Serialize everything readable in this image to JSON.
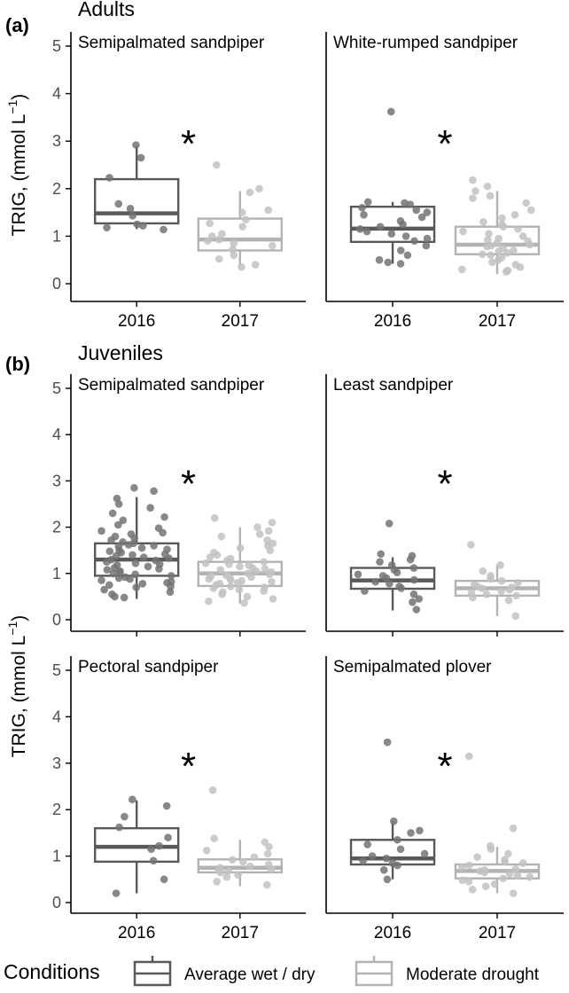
{
  "figure": {
    "y_label": "TRIG, (mmol L",
    "y_label_sup": "−1",
    "y_label_end": ")",
    "y_ticks": [
      "0",
      "1",
      "2",
      "3",
      "4",
      "5"
    ],
    "x_ticks": [
      "2016",
      "2017"
    ]
  },
  "sections": [
    {
      "tag": "(a)",
      "title": "Adults"
    },
    {
      "tag": "(b)",
      "title": "Juveniles"
    }
  ],
  "legend": {
    "title": "Conditions",
    "items": [
      {
        "label": "Average wet / dry",
        "color": "#595959"
      },
      {
        "label": "Moderate drought",
        "color": "#b3b3b3"
      }
    ]
  },
  "colors": {
    "wet": "#595959",
    "drought": "#b3b3b3",
    "axis": "#000000"
  },
  "chart_data": [
    {
      "type": "box",
      "title": "Semipalmated sandpiper",
      "annotation": "*",
      "ylim": [
        0,
        5
      ],
      "categories": [
        "2016",
        "2017"
      ],
      "series": [
        {
          "name": "Average wet / dry",
          "q1": 1.27,
          "median": 1.48,
          "q3": 2.2,
          "whisker_low": 1.15,
          "whisker_high": 2.9,
          "points": [
            2.92,
            2.65,
            2.23,
            1.68,
            1.43,
            1.25,
            1.18,
            1.14,
            1.22,
            1.58
          ]
        },
        {
          "name": "Moderate drought",
          "q1": 0.7,
          "median": 0.93,
          "q3": 1.37,
          "whisker_low": 0.35,
          "whisker_high": 1.95,
          "points": [
            2.5,
            2.0,
            1.92,
            1.55,
            1.5,
            1.35,
            1.27,
            1.2,
            1.05,
            1.0,
            0.93,
            0.9,
            0.85,
            0.8,
            0.72,
            0.6,
            0.52,
            0.4,
            0.35
          ]
        }
      ]
    },
    {
      "type": "box",
      "title": "White-rumped sandpiper",
      "annotation": "*",
      "ylim": [
        0,
        5
      ],
      "categories": [
        "2016",
        "2017"
      ],
      "series": [
        {
          "name": "Average wet / dry",
          "q1": 0.88,
          "median": 1.16,
          "q3": 1.62,
          "whisker_low": 0.42,
          "whisker_high": 1.72,
          "points": [
            3.62,
            1.72,
            1.7,
            1.67,
            1.6,
            1.55,
            1.5,
            1.45,
            1.4,
            1.32,
            1.25,
            1.2,
            1.15,
            1.1,
            1.05,
            1.0,
            0.95,
            0.9,
            0.8,
            0.7,
            0.6,
            0.5,
            0.45,
            0.42
          ]
        },
        {
          "name": "Moderate drought",
          "q1": 0.62,
          "median": 0.82,
          "q3": 1.2,
          "whisker_low": 0.2,
          "whisker_high": 1.95,
          "points": [
            2.18,
            2.05,
            1.95,
            1.85,
            1.8,
            1.7,
            1.55,
            1.45,
            1.38,
            1.3,
            1.25,
            1.2,
            1.15,
            1.1,
            1.05,
            1.0,
            0.95,
            0.92,
            0.9,
            0.85,
            0.82,
            0.8,
            0.78,
            0.75,
            0.7,
            0.68,
            0.65,
            0.62,
            0.6,
            0.55,
            0.5,
            0.45,
            0.4,
            0.35,
            0.3,
            0.28,
            0.25
          ]
        }
      ]
    },
    {
      "type": "box",
      "title": "Semipalmated sandpiper",
      "annotation": "*",
      "ylim": [
        0,
        5
      ],
      "categories": [
        "2016",
        "2017"
      ],
      "series": [
        {
          "name": "Average wet / dry",
          "q1": 0.95,
          "median": 1.3,
          "q3": 1.65,
          "whisker_low": 0.45,
          "whisker_high": 2.65,
          "points": [
            2.85,
            2.78,
            2.62,
            2.5,
            2.42,
            2.3,
            2.22,
            2.15,
            2.05,
            1.98,
            1.92,
            1.88,
            1.85,
            1.8,
            1.76,
            1.72,
            1.68,
            1.65,
            1.62,
            1.6,
            1.58,
            1.55,
            1.52,
            1.5,
            1.48,
            1.45,
            1.42,
            1.4,
            1.38,
            1.35,
            1.33,
            1.3,
            1.28,
            1.25,
            1.22,
            1.2,
            1.18,
            1.15,
            1.12,
            1.1,
            1.08,
            1.05,
            1.02,
            1.0,
            0.98,
            0.95,
            0.92,
            0.9,
            0.88,
            0.85,
            0.82,
            0.8,
            0.78,
            0.75,
            0.72,
            0.7,
            0.65,
            0.6,
            0.55,
            0.5,
            0.48
          ]
        },
        {
          "name": "Moderate drought",
          "q1": 0.73,
          "median": 1.0,
          "q3": 1.25,
          "whisker_low": 0.35,
          "whisker_high": 2.0,
          "points": [
            2.2,
            2.1,
            2.0,
            1.92,
            1.85,
            1.8,
            1.72,
            1.65,
            1.6,
            1.55,
            1.5,
            1.45,
            1.4,
            1.35,
            1.32,
            1.28,
            1.25,
            1.22,
            1.2,
            1.18,
            1.15,
            1.12,
            1.1,
            1.08,
            1.05,
            1.03,
            1.0,
            0.98,
            0.96,
            0.94,
            0.92,
            0.9,
            0.88,
            0.86,
            0.84,
            0.82,
            0.8,
            0.78,
            0.75,
            0.72,
            0.7,
            0.68,
            0.65,
            0.62,
            0.6,
            0.55,
            0.5,
            0.45,
            0.4,
            0.36
          ]
        }
      ]
    },
    {
      "type": "box",
      "title": "Least sandpiper",
      "annotation": "*",
      "ylim": [
        0,
        5
      ],
      "categories": [
        "2016",
        "2017"
      ],
      "series": [
        {
          "name": "Average wet / dry",
          "q1": 0.67,
          "median": 0.85,
          "q3": 1.12,
          "whisker_low": 0.2,
          "whisker_high": 1.35,
          "points": [
            2.08,
            1.42,
            1.38,
            1.3,
            1.25,
            1.18,
            1.12,
            1.08,
            1.02,
            0.98,
            0.95,
            0.9,
            0.86,
            0.82,
            0.78,
            0.72,
            0.68,
            0.62,
            0.55,
            0.45,
            0.38,
            0.22
          ]
        },
        {
          "name": "Moderate drought",
          "q1": 0.52,
          "median": 0.68,
          "q3": 0.84,
          "whisker_low": 0.08,
          "whisker_high": 1.18,
          "points": [
            1.62,
            1.18,
            1.05,
            0.95,
            0.88,
            0.84,
            0.8,
            0.76,
            0.72,
            0.7,
            0.68,
            0.65,
            0.62,
            0.58,
            0.55,
            0.52,
            0.48,
            0.42,
            0.08
          ]
        }
      ]
    },
    {
      "type": "box",
      "title": "Pectoral sandpiper",
      "annotation": "*",
      "ylim": [
        0,
        5
      ],
      "categories": [
        "2016",
        "2017"
      ],
      "series": [
        {
          "name": "Average wet / dry",
          "q1": 0.88,
          "median": 1.2,
          "q3": 1.6,
          "whisker_low": 0.2,
          "whisker_high": 2.2,
          "points": [
            2.22,
            2.08,
            1.85,
            1.62,
            1.4,
            1.22,
            1.15,
            0.9,
            0.5,
            0.2
          ]
        },
        {
          "name": "Moderate drought",
          "q1": 0.65,
          "median": 0.75,
          "q3": 0.93,
          "whisker_low": 0.35,
          "whisker_high": 1.35,
          "points": [
            2.42,
            1.38,
            1.3,
            1.2,
            1.12,
            1.05,
            0.98,
            0.92,
            0.88,
            0.82,
            0.78,
            0.75,
            0.72,
            0.7,
            0.68,
            0.65,
            0.6,
            0.55,
            0.45,
            0.38
          ]
        }
      ]
    },
    {
      "type": "box",
      "title": "Semipalmated plover",
      "annotation": "*",
      "ylim": [
        0,
        5
      ],
      "categories": [
        "2016",
        "2017"
      ],
      "series": [
        {
          "name": "Average wet / dry",
          "q1": 0.82,
          "median": 0.95,
          "q3": 1.35,
          "whisker_low": 0.5,
          "whisker_high": 1.75,
          "points": [
            3.45,
            1.75,
            1.55,
            1.5,
            1.35,
            1.25,
            1.15,
            1.05,
            1.0,
            0.95,
            0.9,
            0.85,
            0.8,
            0.7,
            0.5
          ]
        },
        {
          "name": "Moderate drought",
          "q1": 0.52,
          "median": 0.68,
          "q3": 0.82,
          "whisker_low": 0.2,
          "whisker_high": 1.2,
          "points": [
            3.15,
            1.6,
            1.22,
            1.15,
            1.05,
            0.98,
            0.92,
            0.88,
            0.85,
            0.8,
            0.76,
            0.72,
            0.7,
            0.68,
            0.65,
            0.62,
            0.58,
            0.55,
            0.52,
            0.48,
            0.45,
            0.4,
            0.35,
            0.28,
            0.2
          ]
        }
      ]
    }
  ]
}
